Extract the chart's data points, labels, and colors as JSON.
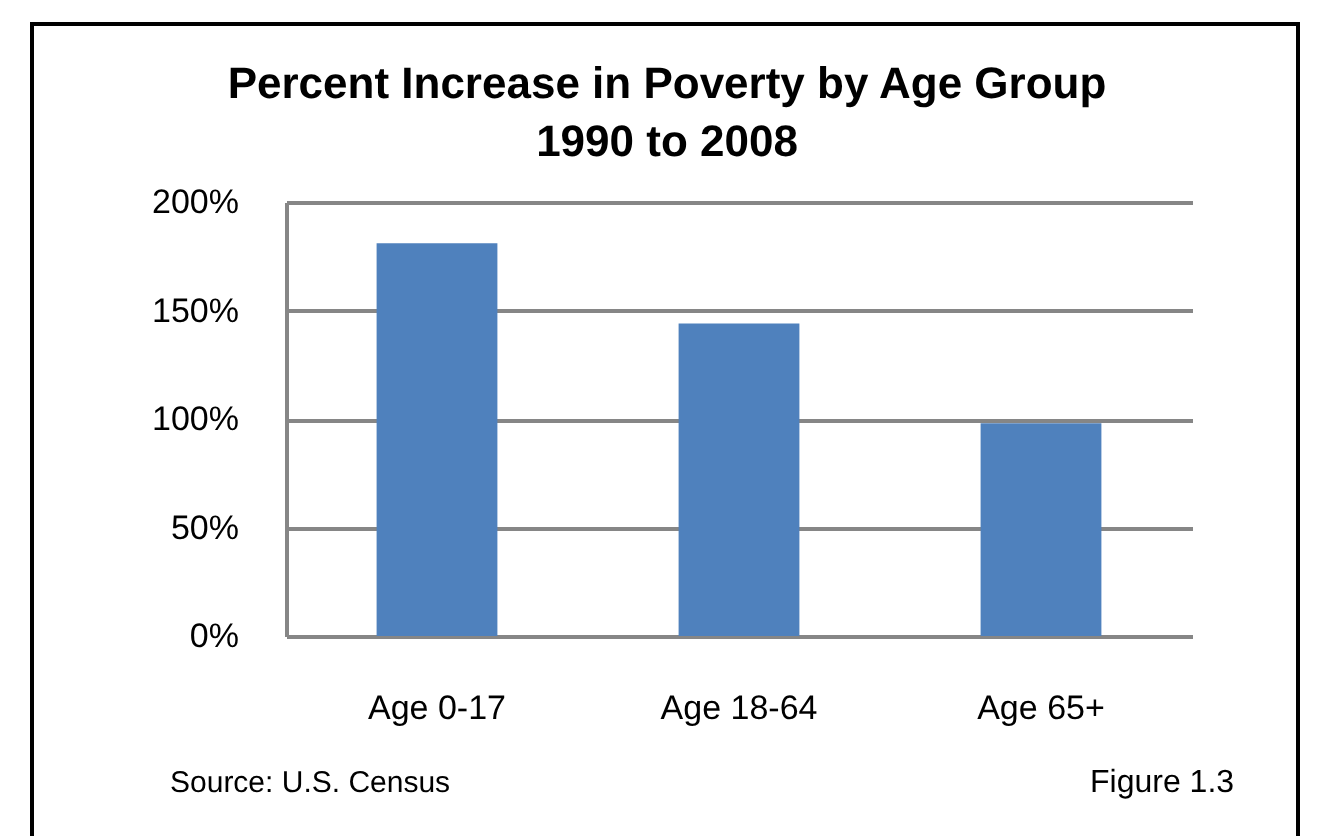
{
  "chart_data": {
    "type": "bar",
    "title": "Percent Increase in Poverty by Age Group",
    "subtitle": "1990 to 2008",
    "categories": [
      "Age 0-17",
      "Age 18-64",
      "Age 65+"
    ],
    "values": [
      181,
      144,
      98
    ],
    "color": "#4f81bd",
    "ylim": [
      0,
      200
    ],
    "yticks": [
      {
        "value": 0,
        "label": "0%"
      },
      {
        "value": 50,
        "label": "50%"
      },
      {
        "value": 100,
        "label": "100%"
      },
      {
        "value": 150,
        "label": "150%"
      },
      {
        "value": 200,
        "label": "200%"
      }
    ],
    "grid": "y",
    "annotations": [
      "Source: U.S. Census",
      "Figure 1.3"
    ]
  }
}
